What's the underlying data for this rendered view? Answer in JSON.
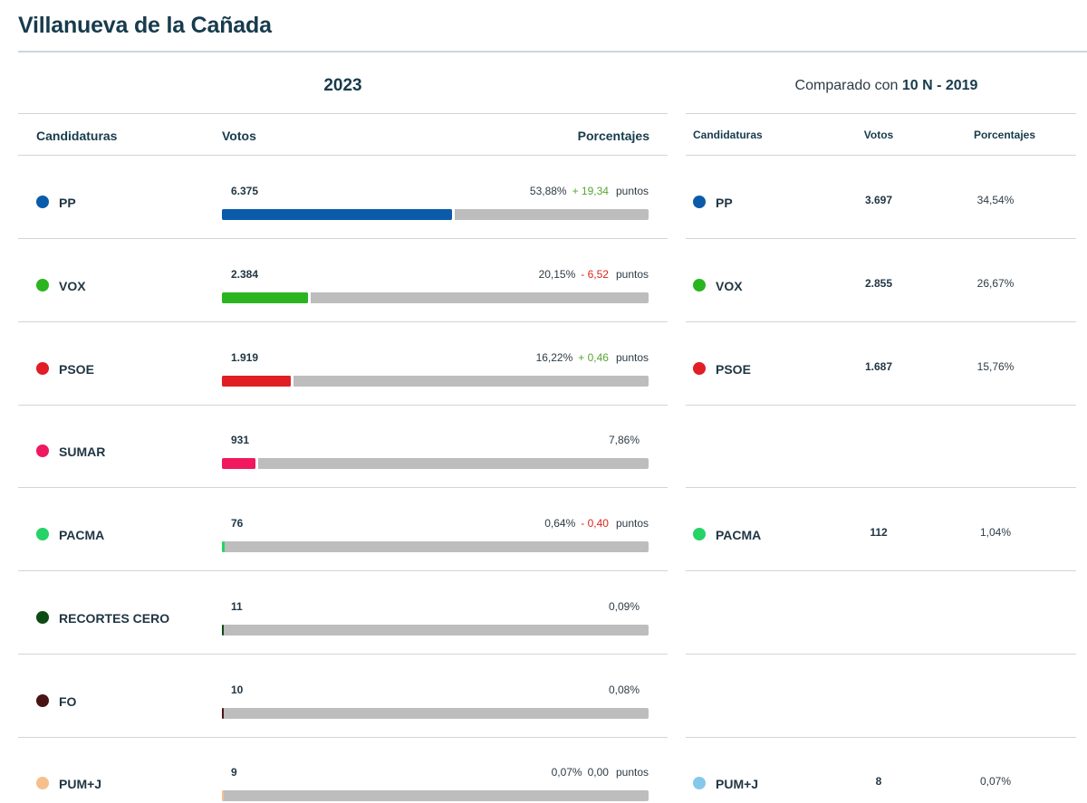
{
  "page": {
    "title": "Villanueva de la Cañada"
  },
  "current": {
    "year": "2023"
  },
  "comparison": {
    "prefix": "Comparado con",
    "label": "10 N - 2019"
  },
  "headers": {
    "left": {
      "candidaturas": "Candidaturas",
      "votos": "Votos",
      "porcentajes": "Porcentajes"
    },
    "right": {
      "candidaturas": "Candidaturas",
      "votos": "Votos",
      "porcentajes": "Porcentajes"
    }
  },
  "unit_points": "puntos",
  "parties": [
    {
      "name": "PP",
      "color": "#0b5bab",
      "votes": "6.375",
      "pct": "53,88%",
      "fraction": 0.5388,
      "delta": "+ 19,34",
      "delta_sign": "pos",
      "prev": {
        "name": "PP",
        "color": "#0b5bab",
        "votes": "3.697",
        "pct": "34,54%"
      }
    },
    {
      "name": "VOX",
      "color": "#2ab520",
      "votes": "2.384",
      "pct": "20,15%",
      "fraction": 0.2015,
      "delta": "- 6,52",
      "delta_sign": "neg",
      "prev": {
        "name": "VOX",
        "color": "#2ab520",
        "votes": "2.855",
        "pct": "26,67%"
      }
    },
    {
      "name": "PSOE",
      "color": "#e01e24",
      "votes": "1.919",
      "pct": "16,22%",
      "fraction": 0.1622,
      "delta": "+ 0,46",
      "delta_sign": "pos",
      "prev": {
        "name": "PSOE",
        "color": "#e01e24",
        "votes": "1.687",
        "pct": "15,76%"
      }
    },
    {
      "name": "SUMAR",
      "color": "#f0185f",
      "votes": "931",
      "pct": "7,86%",
      "fraction": 0.0786,
      "delta": null,
      "delta_sign": null,
      "prev": null
    },
    {
      "name": "PACMA",
      "color": "#25d366",
      "votes": "76",
      "pct": "0,64%",
      "fraction": 0.0064,
      "delta": "- 0,40",
      "delta_sign": "neg",
      "prev": {
        "name": "PACMA",
        "color": "#25d366",
        "votes": "112",
        "pct": "1,04%"
      }
    },
    {
      "name": "RECORTES CERO",
      "color": "#0d4a14",
      "votes": "11",
      "pct": "0,09%",
      "fraction": 0.0009,
      "delta": null,
      "delta_sign": null,
      "prev": null
    },
    {
      "name": "FO",
      "color": "#4a1414",
      "votes": "10",
      "pct": "0,08%",
      "fraction": 0.0008,
      "delta": null,
      "delta_sign": null,
      "prev": null
    },
    {
      "name": "PUM+J",
      "color": "#f5c08e",
      "votes": "9",
      "pct": "0,07%",
      "fraction": 0.0007,
      "delta": "0,00",
      "delta_sign": "zero",
      "prev": {
        "name": "PUM+J",
        "color": "#84c9ec",
        "votes": "8",
        "pct": "0,07%"
      }
    }
  ]
}
